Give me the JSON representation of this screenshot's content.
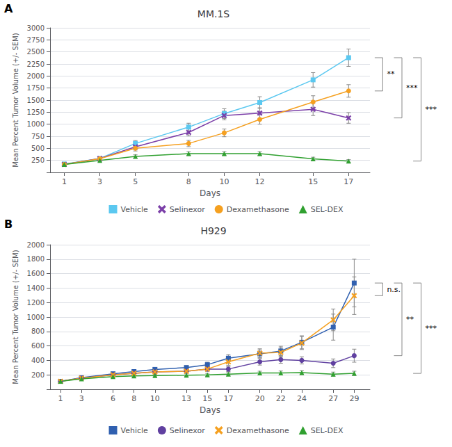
{
  "chart_data": [
    {
      "type": "line",
      "panel": "A",
      "title": "MM.1S",
      "xlabel": "Days",
      "ylabel": "Mean Percent Tumor Volume (+/- SEM)",
      "x": [
        1,
        3,
        5,
        8,
        10,
        12,
        15,
        17
      ],
      "xlim": [
        0.2,
        18.2
      ],
      "xticks": [
        1,
        3,
        5,
        8,
        10,
        12,
        15,
        17
      ],
      "ylim": [
        0,
        3000
      ],
      "yticks": [
        {
          "value": 0,
          "label": null
        },
        250,
        500,
        750,
        1000,
        1250,
        1500,
        1750,
        2000,
        2250,
        2500,
        2750,
        3000
      ],
      "grid": "y",
      "legend": "bottom",
      "series": [
        {
          "name": "Vehicle",
          "color": "#5BC8F0",
          "marker": "square",
          "values": [
            175,
            290,
            600,
            940,
            1220,
            1450,
            1920,
            2380
          ],
          "errors": [
            15,
            30,
            60,
            80,
            100,
            120,
            150,
            180
          ]
        },
        {
          "name": "Selinexor",
          "color": "#7B3FA8",
          "marker": "x",
          "values": [
            165,
            290,
            530,
            830,
            1180,
            1230,
            1310,
            1130
          ],
          "errors": [
            15,
            30,
            55,
            70,
            90,
            110,
            130,
            110
          ]
        },
        {
          "name": "Dexamethasone",
          "color": "#F5A020",
          "marker": "circle",
          "values": [
            165,
            285,
            500,
            600,
            820,
            1100,
            1460,
            1690
          ],
          "errors": [
            15,
            30,
            55,
            65,
            80,
            100,
            130,
            130
          ]
        },
        {
          "name": "SEL-DEX",
          "color": "#30A030",
          "marker": "triangle",
          "values": [
            165,
            250,
            330,
            390,
            390,
            390,
            280,
            235
          ],
          "errors": [
            15,
            25,
            35,
            40,
            40,
            40,
            35,
            30
          ]
        }
      ],
      "annotations": [
        {
          "text": "**",
          "y_top": 2380,
          "y_bottom": 1690
        },
        {
          "text": "***",
          "y_top": 2380,
          "y_bottom": 1130
        },
        {
          "text": "***",
          "y_top": 2380,
          "y_bottom": 235
        }
      ]
    },
    {
      "type": "line",
      "panel": "B",
      "title": "H929",
      "xlabel": "Days",
      "ylabel": "Mean Percent Tumor Volume (+/- SEM)",
      "x": [
        1,
        3,
        6,
        8,
        10,
        13,
        15,
        17,
        20,
        22,
        24,
        27,
        29
      ],
      "xlim": [
        0.0,
        30.5
      ],
      "xticks": [
        1,
        3,
        6,
        8,
        10,
        13,
        15,
        17,
        20,
        22,
        24,
        27,
        29
      ],
      "ylim": [
        0,
        2000
      ],
      "yticks": [
        {
          "value": 0,
          "label": null
        },
        200,
        400,
        600,
        800,
        1000,
        1200,
        1400,
        1600,
        1800,
        2000
      ],
      "grid": "y",
      "legend": "bottom",
      "series": [
        {
          "name": "Vehicle",
          "color": "#3060B0",
          "marker": "square",
          "values": [
            110,
            160,
            215,
            245,
            275,
            300,
            340,
            430,
            490,
            530,
            650,
            860,
            1470
          ],
          "errors": [
            10,
            15,
            20,
            22,
            25,
            28,
            35,
            50,
            55,
            65,
            90,
            180,
            330
          ]
        },
        {
          "name": "Selinexor",
          "color": "#6040A0",
          "marker": "circle",
          "values": [
            110,
            155,
            200,
            220,
            240,
            250,
            280,
            280,
            380,
            410,
            400,
            360,
            465
          ],
          "errors": [
            10,
            15,
            18,
            20,
            22,
            25,
            28,
            35,
            45,
            50,
            50,
            60,
            90
          ]
        },
        {
          "name": "Dexamethasone",
          "color": "#F5A020",
          "marker": "x",
          "values": [
            110,
            155,
            200,
            220,
            240,
            250,
            280,
            380,
            500,
            510,
            640,
            960,
            1295
          ],
          "errors": [
            10,
            15,
            18,
            20,
            22,
            25,
            30,
            50,
            60,
            65,
            90,
            150,
            260
          ]
        },
        {
          "name": "SEL-DEX",
          "color": "#30A030",
          "marker": "triangle",
          "values": [
            110,
            145,
            175,
            185,
            190,
            195,
            200,
            210,
            225,
            225,
            230,
            210,
            220
          ],
          "errors": [
            10,
            12,
            15,
            16,
            17,
            18,
            20,
            22,
            25,
            28,
            28,
            28,
            30
          ]
        }
      ],
      "annotations": [
        {
          "text": "n.s.",
          "y_top": 1470,
          "y_bottom": 1295
        },
        {
          "text": "**",
          "y_top": 1470,
          "y_bottom": 465
        },
        {
          "text": "***",
          "y_top": 1470,
          "y_bottom": 220
        }
      ]
    }
  ]
}
